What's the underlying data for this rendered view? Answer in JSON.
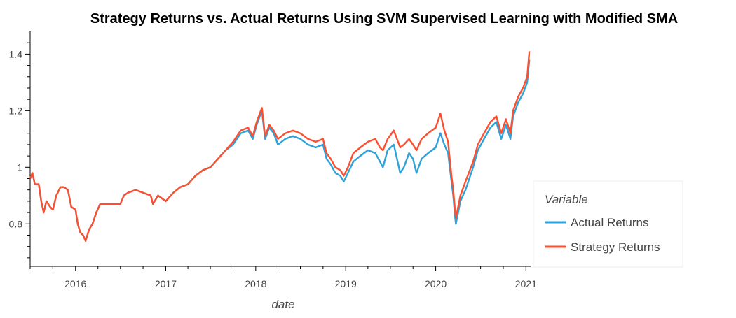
{
  "chart_data": {
    "type": "line",
    "title": "Strategy Returns vs. Actual Returns Using SVM Supervised Learning with Modified SMA",
    "xlabel": "date",
    "ylabel": "",
    "xlim": [
      "2015-07-01",
      "2021-01-20"
    ],
    "ylim": [
      0.65,
      1.48
    ],
    "x_ticks": [
      "2016",
      "2017",
      "2018",
      "2019",
      "2020",
      "2021"
    ],
    "y_ticks": [
      "0.8",
      "1",
      "1.2",
      "1.4"
    ],
    "y_tick_values": [
      0.8,
      1.0,
      1.2,
      1.4
    ],
    "grid": false,
    "legend": {
      "title": "Variable",
      "placement": "right"
    },
    "series": [
      {
        "name": "Actual Returns",
        "color": "#30a2da",
        "points": [
          [
            "2015-07-01",
            0.96
          ],
          [
            "2015-07-10",
            0.98
          ],
          [
            "2015-07-20",
            0.94
          ],
          [
            "2015-08-05",
            0.94
          ],
          [
            "2015-08-15",
            0.88
          ],
          [
            "2015-08-25",
            0.84
          ],
          [
            "2015-09-05",
            0.88
          ],
          [
            "2015-09-20",
            0.86
          ],
          [
            "2015-10-01",
            0.85
          ],
          [
            "2015-10-15",
            0.9
          ],
          [
            "2015-11-01",
            0.93
          ],
          [
            "2015-11-15",
            0.93
          ],
          [
            "2015-12-01",
            0.92
          ],
          [
            "2015-12-15",
            0.86
          ],
          [
            "2016-01-01",
            0.85
          ],
          [
            "2016-01-10",
            0.8
          ],
          [
            "2016-01-20",
            0.77
          ],
          [
            "2016-02-01",
            0.76
          ],
          [
            "2016-02-11",
            0.74
          ],
          [
            "2016-02-25",
            0.78
          ],
          [
            "2016-03-10",
            0.8
          ],
          [
            "2016-03-25",
            0.84
          ],
          [
            "2016-04-10",
            0.87
          ],
          [
            "2016-05-01",
            0.87
          ],
          [
            "2016-06-01",
            0.87
          ],
          [
            "2016-07-01",
            0.87
          ],
          [
            "2016-07-15",
            0.9
          ],
          [
            "2016-08-01",
            0.91
          ],
          [
            "2016-09-01",
            0.92
          ],
          [
            "2016-10-01",
            0.91
          ],
          [
            "2016-11-01",
            0.9
          ],
          [
            "2016-11-10",
            0.87
          ],
          [
            "2016-12-01",
            0.9
          ],
          [
            "2017-01-01",
            0.88
          ],
          [
            "2017-02-01",
            0.91
          ],
          [
            "2017-03-01",
            0.93
          ],
          [
            "2017-04-01",
            0.94
          ],
          [
            "2017-05-01",
            0.97
          ],
          [
            "2017-06-01",
            0.99
          ],
          [
            "2017-07-01",
            1.0
          ],
          [
            "2017-08-01",
            1.03
          ],
          [
            "2017-09-01",
            1.06
          ],
          [
            "2017-10-01",
            1.08
          ],
          [
            "2017-11-01",
            1.12
          ],
          [
            "2017-12-01",
            1.13
          ],
          [
            "2017-12-20",
            1.1
          ],
          [
            "2018-01-05",
            1.15
          ],
          [
            "2018-01-26",
            1.2
          ],
          [
            "2018-02-08",
            1.1
          ],
          [
            "2018-02-25",
            1.14
          ],
          [
            "2018-03-15",
            1.12
          ],
          [
            "2018-04-01",
            1.08
          ],
          [
            "2018-05-01",
            1.1
          ],
          [
            "2018-06-01",
            1.11
          ],
          [
            "2018-07-01",
            1.1
          ],
          [
            "2018-08-01",
            1.08
          ],
          [
            "2018-09-01",
            1.07
          ],
          [
            "2018-10-01",
            1.08
          ],
          [
            "2018-10-15",
            1.03
          ],
          [
            "2018-11-01",
            1.01
          ],
          [
            "2018-11-20",
            0.98
          ],
          [
            "2018-12-10",
            0.97
          ],
          [
            "2018-12-24",
            0.95
          ],
          [
            "2019-01-10",
            0.98
          ],
          [
            "2019-02-01",
            1.02
          ],
          [
            "2019-03-01",
            1.04
          ],
          [
            "2019-04-01",
            1.06
          ],
          [
            "2019-05-01",
            1.05
          ],
          [
            "2019-05-20",
            1.02
          ],
          [
            "2019-06-01",
            1.0
          ],
          [
            "2019-06-20",
            1.06
          ],
          [
            "2019-07-15",
            1.08
          ],
          [
            "2019-08-10",
            0.98
          ],
          [
            "2019-08-25",
            1.0
          ],
          [
            "2019-09-15",
            1.05
          ],
          [
            "2019-10-01",
            1.03
          ],
          [
            "2019-10-15",
            0.98
          ],
          [
            "2019-11-05",
            1.03
          ],
          [
            "2019-12-01",
            1.05
          ],
          [
            "2020-01-01",
            1.07
          ],
          [
            "2020-01-20",
            1.12
          ],
          [
            "2020-02-05",
            1.08
          ],
          [
            "2020-02-20",
            1.05
          ],
          [
            "2020-03-05",
            0.95
          ],
          [
            "2020-03-12",
            0.9
          ],
          [
            "2020-03-20",
            0.82
          ],
          [
            "2020-03-23",
            0.8
          ],
          [
            "2020-04-10",
            0.88
          ],
          [
            "2020-05-01",
            0.92
          ],
          [
            "2020-06-01",
            1.0
          ],
          [
            "2020-06-20",
            1.06
          ],
          [
            "2020-07-15",
            1.1
          ],
          [
            "2020-08-10",
            1.14
          ],
          [
            "2020-09-03",
            1.16
          ],
          [
            "2020-09-23",
            1.1
          ],
          [
            "2020-10-12",
            1.15
          ],
          [
            "2020-10-30",
            1.1
          ],
          [
            "2020-11-10",
            1.18
          ],
          [
            "2020-12-01",
            1.23
          ],
          [
            "2020-12-20",
            1.26
          ],
          [
            "2021-01-06",
            1.3
          ],
          [
            "2021-01-15",
            1.38
          ]
        ]
      },
      {
        "name": "Strategy Returns",
        "color": "#fc4f30",
        "points": [
          [
            "2015-07-01",
            0.96
          ],
          [
            "2015-07-10",
            0.98
          ],
          [
            "2015-07-20",
            0.94
          ],
          [
            "2015-08-05",
            0.94
          ],
          [
            "2015-08-15",
            0.88
          ],
          [
            "2015-08-25",
            0.84
          ],
          [
            "2015-09-05",
            0.88
          ],
          [
            "2015-09-20",
            0.86
          ],
          [
            "2015-10-01",
            0.85
          ],
          [
            "2015-10-15",
            0.9
          ],
          [
            "2015-11-01",
            0.93
          ],
          [
            "2015-11-15",
            0.93
          ],
          [
            "2015-12-01",
            0.92
          ],
          [
            "2015-12-15",
            0.86
          ],
          [
            "2016-01-01",
            0.85
          ],
          [
            "2016-01-10",
            0.8
          ],
          [
            "2016-01-20",
            0.77
          ],
          [
            "2016-02-01",
            0.76
          ],
          [
            "2016-02-11",
            0.74
          ],
          [
            "2016-02-25",
            0.78
          ],
          [
            "2016-03-10",
            0.8
          ],
          [
            "2016-03-25",
            0.84
          ],
          [
            "2016-04-10",
            0.87
          ],
          [
            "2016-05-01",
            0.87
          ],
          [
            "2016-06-01",
            0.87
          ],
          [
            "2016-07-01",
            0.87
          ],
          [
            "2016-07-15",
            0.9
          ],
          [
            "2016-08-01",
            0.91
          ],
          [
            "2016-09-01",
            0.92
          ],
          [
            "2016-10-01",
            0.91
          ],
          [
            "2016-11-01",
            0.9
          ],
          [
            "2016-11-10",
            0.87
          ],
          [
            "2016-12-01",
            0.9
          ],
          [
            "2017-01-01",
            0.88
          ],
          [
            "2017-02-01",
            0.91
          ],
          [
            "2017-03-01",
            0.93
          ],
          [
            "2017-04-01",
            0.94
          ],
          [
            "2017-05-01",
            0.97
          ],
          [
            "2017-06-01",
            0.99
          ],
          [
            "2017-07-01",
            1.0
          ],
          [
            "2017-08-01",
            1.03
          ],
          [
            "2017-09-01",
            1.06
          ],
          [
            "2017-10-01",
            1.09
          ],
          [
            "2017-11-01",
            1.13
          ],
          [
            "2017-12-01",
            1.14
          ],
          [
            "2017-12-20",
            1.11
          ],
          [
            "2018-01-05",
            1.16
          ],
          [
            "2018-01-26",
            1.21
          ],
          [
            "2018-02-08",
            1.11
          ],
          [
            "2018-02-25",
            1.15
          ],
          [
            "2018-03-15",
            1.13
          ],
          [
            "2018-04-01",
            1.1
          ],
          [
            "2018-05-01",
            1.12
          ],
          [
            "2018-06-01",
            1.13
          ],
          [
            "2018-07-01",
            1.12
          ],
          [
            "2018-08-01",
            1.1
          ],
          [
            "2018-09-01",
            1.09
          ],
          [
            "2018-10-01",
            1.1
          ],
          [
            "2018-10-15",
            1.05
          ],
          [
            "2018-11-01",
            1.03
          ],
          [
            "2018-11-20",
            1.0
          ],
          [
            "2018-12-10",
            0.99
          ],
          [
            "2018-12-24",
            0.97
          ],
          [
            "2019-01-10",
            1.0
          ],
          [
            "2019-02-01",
            1.05
          ],
          [
            "2019-03-01",
            1.07
          ],
          [
            "2019-04-01",
            1.09
          ],
          [
            "2019-05-01",
            1.1
          ],
          [
            "2019-05-20",
            1.07
          ],
          [
            "2019-06-01",
            1.06
          ],
          [
            "2019-06-20",
            1.1
          ],
          [
            "2019-07-15",
            1.13
          ],
          [
            "2019-08-10",
            1.07
          ],
          [
            "2019-08-25",
            1.08
          ],
          [
            "2019-09-15",
            1.1
          ],
          [
            "2019-10-01",
            1.08
          ],
          [
            "2019-10-15",
            1.06
          ],
          [
            "2019-11-05",
            1.1
          ],
          [
            "2019-12-01",
            1.12
          ],
          [
            "2020-01-01",
            1.14
          ],
          [
            "2020-01-20",
            1.19
          ],
          [
            "2020-02-05",
            1.13
          ],
          [
            "2020-02-20",
            1.09
          ],
          [
            "2020-03-05",
            0.97
          ],
          [
            "2020-03-12",
            0.92
          ],
          [
            "2020-03-20",
            0.84
          ],
          [
            "2020-03-23",
            0.82
          ],
          [
            "2020-04-10",
            0.9
          ],
          [
            "2020-05-01",
            0.95
          ],
          [
            "2020-06-01",
            1.02
          ],
          [
            "2020-06-20",
            1.08
          ],
          [
            "2020-07-15",
            1.12
          ],
          [
            "2020-08-10",
            1.16
          ],
          [
            "2020-09-03",
            1.18
          ],
          [
            "2020-09-23",
            1.12
          ],
          [
            "2020-10-12",
            1.17
          ],
          [
            "2020-10-30",
            1.12
          ],
          [
            "2020-11-10",
            1.2
          ],
          [
            "2020-12-01",
            1.25
          ],
          [
            "2020-12-20",
            1.28
          ],
          [
            "2021-01-06",
            1.32
          ],
          [
            "2021-01-15",
            1.41
          ]
        ]
      }
    ]
  }
}
